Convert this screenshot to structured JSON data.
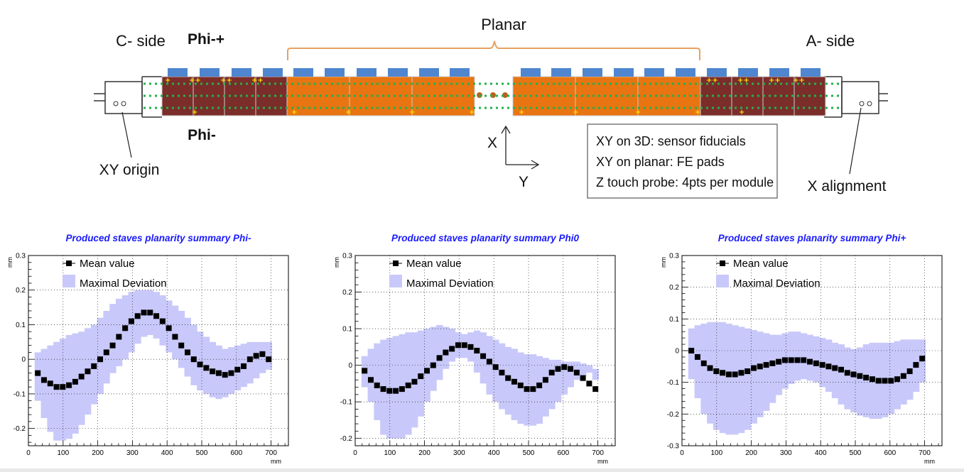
{
  "diagram": {
    "planar_label": "Planar",
    "c_side": "C- side",
    "a_side": "A- side",
    "phi_plus": "Phi-+",
    "phi_minus": "Phi-",
    "xy_origin": "XY origin",
    "x_alignment": "X alignment",
    "axis_x": "X",
    "axis_y": "Y",
    "info_lines": [
      "XY on 3D: sensor fiducials",
      "XY on planar: FE pads",
      "Z touch probe: 4pts per module"
    ],
    "colors": {
      "maroon": "#7b2d2a",
      "orange": "#e87511",
      "blue": "#4f86cf",
      "green_dots": "#22b14c",
      "yellow_marks": "#ffe400",
      "bracket": "#e8a060"
    }
  },
  "chart_data": [
    {
      "type": "scatter",
      "title": "Produced staves planarity summary Phi-",
      "xlabel": "mm",
      "ylabel": "mm",
      "xlim": [
        0,
        750
      ],
      "ylim": [
        -0.25,
        0.3
      ],
      "xticks": [
        0,
        100,
        200,
        300,
        400,
        500,
        600,
        700
      ],
      "yticks": [
        -0.2,
        -0.1,
        0,
        0.1,
        0.2,
        0.3
      ],
      "ytick_labels": [
        "-0.2",
        "-0.1",
        "0",
        "0.1",
        "0.2",
        "0.3"
      ],
      "grid": true,
      "legend": {
        "position": "top-left",
        "entries": [
          "Mean value",
          "Maximal Deviation"
        ]
      },
      "band_color": "#c8c8fa",
      "marker_color": "#000000",
      "series": [
        {
          "name": "Mean value",
          "x": [
            27,
            45,
            63,
            81,
            99,
            117,
            135,
            153,
            171,
            189,
            207,
            225,
            243,
            261,
            279,
            297,
            315,
            333,
            351,
            369,
            387,
            405,
            423,
            441,
            459,
            477,
            495,
            513,
            531,
            549,
            567,
            585,
            603,
            621,
            639,
            657,
            675,
            693
          ],
          "y": [
            -0.04,
            -0.06,
            -0.07,
            -0.08,
            -0.08,
            -0.075,
            -0.065,
            -0.05,
            -0.035,
            -0.02,
            0.0,
            0.02,
            0.04,
            0.065,
            0.09,
            0.11,
            0.125,
            0.135,
            0.135,
            0.125,
            0.11,
            0.09,
            0.065,
            0.04,
            0.02,
            0.0,
            -0.015,
            -0.025,
            -0.035,
            -0.04,
            -0.045,
            -0.04,
            -0.03,
            -0.02,
            0.0,
            0.01,
            0.015,
            0.0
          ]
        },
        {
          "name": "Maximal Deviation",
          "x": [
            27,
            45,
            63,
            81,
            99,
            117,
            135,
            153,
            171,
            189,
            207,
            225,
            243,
            261,
            279,
            297,
            315,
            333,
            351,
            369,
            387,
            405,
            423,
            441,
            459,
            477,
            495,
            513,
            531,
            549,
            567,
            585,
            603,
            621,
            639,
            657,
            675,
            693
          ],
          "upper": [
            0.02,
            0.03,
            0.04,
            0.05,
            0.06,
            0.07,
            0.075,
            0.08,
            0.09,
            0.1,
            0.12,
            0.14,
            0.16,
            0.175,
            0.185,
            0.195,
            0.2,
            0.2,
            0.2,
            0.195,
            0.185,
            0.17,
            0.155,
            0.14,
            0.12,
            0.1,
            0.08,
            0.065,
            0.05,
            0.04,
            0.03,
            0.035,
            0.04,
            0.045,
            0.05,
            0.05,
            0.05,
            0.05
          ],
          "lower": [
            -0.12,
            -0.17,
            -0.21,
            -0.235,
            -0.235,
            -0.23,
            -0.215,
            -0.19,
            -0.16,
            -0.13,
            -0.1,
            -0.07,
            -0.04,
            -0.02,
            0.0,
            0.02,
            0.045,
            0.065,
            0.07,
            0.06,
            0.04,
            0.02,
            0.0,
            -0.025,
            -0.05,
            -0.075,
            -0.09,
            -0.1,
            -0.11,
            -0.115,
            -0.11,
            -0.1,
            -0.09,
            -0.08,
            -0.07,
            -0.055,
            -0.04,
            -0.03
          ]
        }
      ]
    },
    {
      "type": "scatter",
      "title": "Produced staves planarity summary Phi0",
      "xlabel": "mm",
      "ylabel": "mm",
      "xlim": [
        0,
        750
      ],
      "ylim": [
        -0.22,
        0.3
      ],
      "xticks": [
        0,
        100,
        200,
        300,
        400,
        500,
        600,
        700
      ],
      "yticks": [
        -0.2,
        -0.1,
        0,
        0.1,
        0.2,
        0.3
      ],
      "ytick_labels": [
        "-0.2",
        "-0.1",
        "0",
        "0.1",
        "0.2",
        "0.3"
      ],
      "grid": true,
      "legend": {
        "position": "top-left",
        "entries": [
          "Mean value",
          "Maximal Deviation"
        ]
      },
      "band_color": "#c8c8fa",
      "marker_color": "#000000",
      "series": [
        {
          "name": "Mean value",
          "x": [
            27,
            45,
            63,
            81,
            99,
            117,
            135,
            153,
            171,
            189,
            207,
            225,
            243,
            261,
            279,
            297,
            315,
            333,
            351,
            369,
            387,
            405,
            423,
            441,
            459,
            477,
            495,
            513,
            531,
            549,
            567,
            585,
            603,
            621,
            639,
            657,
            675,
            693
          ],
          "y": [
            -0.015,
            -0.04,
            -0.055,
            -0.065,
            -0.07,
            -0.07,
            -0.065,
            -0.055,
            -0.045,
            -0.03,
            -0.015,
            0.0,
            0.02,
            0.035,
            0.045,
            0.055,
            0.055,
            0.05,
            0.04,
            0.025,
            0.01,
            -0.005,
            -0.02,
            -0.035,
            -0.045,
            -0.055,
            -0.065,
            -0.065,
            -0.055,
            -0.04,
            -0.02,
            -0.01,
            -0.005,
            -0.01,
            -0.02,
            -0.035,
            -0.05,
            -0.065
          ]
        },
        {
          "name": "Maximal Deviation",
          "x": [
            27,
            45,
            63,
            81,
            99,
            117,
            135,
            153,
            171,
            189,
            207,
            225,
            243,
            261,
            279,
            297,
            315,
            333,
            351,
            369,
            387,
            405,
            423,
            441,
            459,
            477,
            495,
            513,
            531,
            549,
            567,
            585,
            603,
            621,
            639,
            657,
            675,
            693
          ],
          "upper": [
            0.025,
            0.045,
            0.06,
            0.07,
            0.075,
            0.08,
            0.085,
            0.09,
            0.09,
            0.095,
            0.1,
            0.105,
            0.11,
            0.105,
            0.1,
            0.09,
            0.085,
            0.09,
            0.095,
            0.09,
            0.08,
            0.07,
            0.06,
            0.05,
            0.045,
            0.035,
            0.03,
            0.03,
            0.025,
            0.02,
            0.015,
            0.015,
            0.01,
            0.01,
            0.01,
            0.005,
            0.0,
            -0.01
          ],
          "lower": [
            -0.06,
            -0.1,
            -0.15,
            -0.19,
            -0.2,
            -0.2,
            -0.2,
            -0.19,
            -0.17,
            -0.14,
            -0.1,
            -0.07,
            -0.04,
            -0.01,
            0.01,
            0.02,
            0.02,
            0.01,
            -0.02,
            -0.05,
            -0.08,
            -0.1,
            -0.12,
            -0.135,
            -0.15,
            -0.16,
            -0.165,
            -0.165,
            -0.16,
            -0.14,
            -0.12,
            -0.1,
            -0.08,
            -0.06,
            -0.04,
            -0.03,
            -0.02,
            -0.04
          ]
        }
      ]
    },
    {
      "type": "scatter",
      "title": "Produced staves planarity summary Phi+",
      "xlabel": "mm",
      "ylabel": "mm",
      "xlim": [
        0,
        750
      ],
      "ylim": [
        -0.3,
        0.3
      ],
      "xticks": [
        0,
        100,
        200,
        300,
        400,
        500,
        600,
        700
      ],
      "yticks": [
        -0.3,
        -0.2,
        -0.1,
        0,
        0.1,
        0.2,
        0.3
      ],
      "ytick_labels": [
        "-0.3",
        "-0.2",
        "-0.1",
        "0",
        "0.1",
        "0.2",
        "0.3"
      ],
      "grid": true,
      "legend": {
        "position": "top-left",
        "entries": [
          "Mean value",
          "Maximal Deviation"
        ]
      },
      "band_color": "#c8c8fa",
      "marker_color": "#000000",
      "series": [
        {
          "name": "Mean value",
          "x": [
            27,
            45,
            63,
            81,
            99,
            117,
            135,
            153,
            171,
            189,
            207,
            225,
            243,
            261,
            279,
            297,
            315,
            333,
            351,
            369,
            387,
            405,
            423,
            441,
            459,
            477,
            495,
            513,
            531,
            549,
            567,
            585,
            603,
            621,
            639,
            657,
            675,
            693
          ],
          "y": [
            0.0,
            -0.02,
            -0.04,
            -0.055,
            -0.065,
            -0.07,
            -0.075,
            -0.075,
            -0.07,
            -0.065,
            -0.055,
            -0.05,
            -0.045,
            -0.04,
            -0.035,
            -0.03,
            -0.03,
            -0.03,
            -0.03,
            -0.035,
            -0.04,
            -0.045,
            -0.05,
            -0.055,
            -0.06,
            -0.07,
            -0.075,
            -0.08,
            -0.085,
            -0.09,
            -0.095,
            -0.095,
            -0.095,
            -0.09,
            -0.08,
            -0.065,
            -0.045,
            -0.025
          ]
        },
        {
          "name": "Maximal Deviation",
          "x": [
            27,
            45,
            63,
            81,
            99,
            117,
            135,
            153,
            171,
            189,
            207,
            225,
            243,
            261,
            279,
            297,
            315,
            333,
            351,
            369,
            387,
            405,
            423,
            441,
            459,
            477,
            495,
            513,
            531,
            549,
            567,
            585,
            603,
            621,
            639,
            657,
            675,
            693
          ],
          "upper": [
            0.07,
            0.08,
            0.085,
            0.09,
            0.09,
            0.09,
            0.085,
            0.08,
            0.075,
            0.07,
            0.065,
            0.06,
            0.055,
            0.05,
            0.05,
            0.055,
            0.06,
            0.06,
            0.055,
            0.05,
            0.045,
            0.04,
            0.035,
            0.025,
            0.02,
            0.01,
            0.005,
            0.01,
            0.02,
            0.025,
            0.025,
            0.025,
            0.025,
            0.03,
            0.035,
            0.035,
            0.035,
            0.035
          ],
          "lower": [
            -0.09,
            -0.15,
            -0.2,
            -0.23,
            -0.25,
            -0.26,
            -0.265,
            -0.265,
            -0.26,
            -0.25,
            -0.23,
            -0.21,
            -0.19,
            -0.165,
            -0.14,
            -0.12,
            -0.105,
            -0.095,
            -0.09,
            -0.095,
            -0.1,
            -0.115,
            -0.13,
            -0.15,
            -0.17,
            -0.185,
            -0.195,
            -0.205,
            -0.21,
            -0.215,
            -0.215,
            -0.21,
            -0.2,
            -0.185,
            -0.17,
            -0.155,
            -0.13,
            -0.1
          ]
        }
      ]
    }
  ]
}
